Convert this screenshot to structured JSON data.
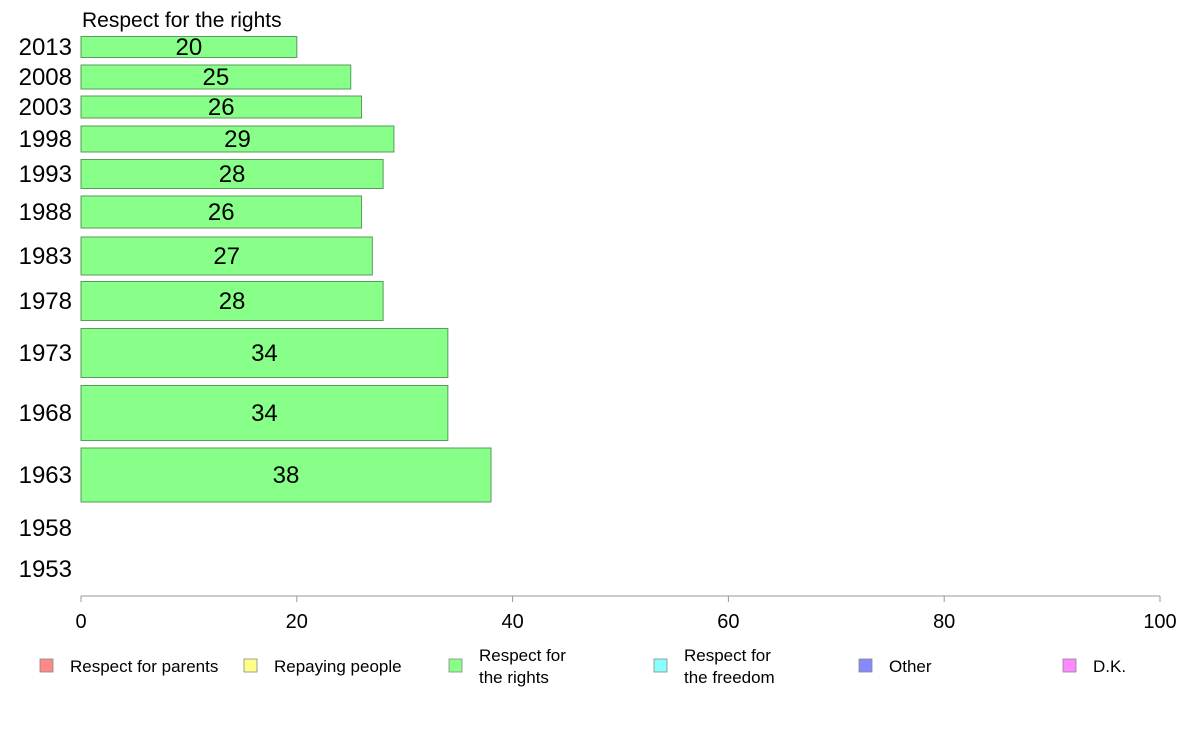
{
  "chart_data": {
    "type": "bar",
    "orientation": "horizontal",
    "title": "Respect for the rights",
    "categories": [
      "2013",
      "2008",
      "2003",
      "1998",
      "1993",
      "1988",
      "1983",
      "1978",
      "1973",
      "1968",
      "1963",
      "1958",
      "1953"
    ],
    "values": [
      20,
      25,
      26,
      29,
      28,
      26,
      27,
      28,
      34,
      34,
      38,
      null,
      null
    ],
    "xlim": [
      0,
      100
    ],
    "x_ticks": [
      0,
      20,
      40,
      60,
      80,
      100
    ],
    "grid": false,
    "bar_color": "#88ff88",
    "bar_edge_color": "#5a9a5a",
    "legend": {
      "placement": "bottom",
      "entries": [
        {
          "label": [
            "Respect for parents"
          ],
          "color": "#ff8888"
        },
        {
          "label": [
            "Repaying people"
          ],
          "color": "#ffff88"
        },
        {
          "label": [
            "Respect for",
            "the rights"
          ],
          "color": "#88ff88"
        },
        {
          "label": [
            "Respect for",
            "the freedom"
          ],
          "color": "#88ffff"
        },
        {
          "label": [
            "Other"
          ],
          "color": "#8888ff"
        },
        {
          "label": [
            "D.K."
          ],
          "color": "#ff88ff"
        }
      ]
    }
  }
}
